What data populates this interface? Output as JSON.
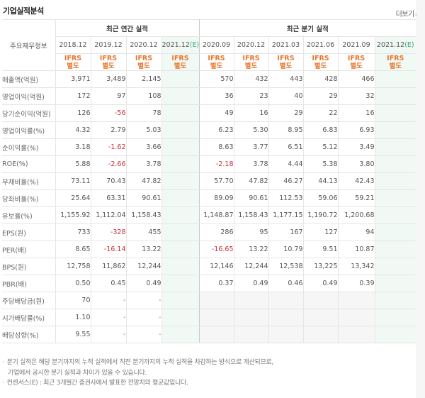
{
  "section": {
    "title": "기업실적분석",
    "more_label": "더보기",
    "more_arrow": "›"
  },
  "table": {
    "row_header": "주요재무정보",
    "groups": [
      {
        "label": "최근 연간 실적"
      },
      {
        "label": "최근 분기 실적"
      }
    ],
    "annual_periods": [
      {
        "label": "2018.12",
        "estimate": ""
      },
      {
        "label": "2019.12",
        "estimate": ""
      },
      {
        "label": "2020.12",
        "estimate": ""
      },
      {
        "label": "2021.12",
        "estimate": "(E)"
      }
    ],
    "quarter_periods": [
      {
        "label": "2020.09",
        "estimate": ""
      },
      {
        "label": "2020.12",
        "estimate": ""
      },
      {
        "label": "2021.03",
        "estimate": ""
      },
      {
        "label": "2021.06",
        "estimate": ""
      },
      {
        "label": "2021.09",
        "estimate": ""
      },
      {
        "label": "2021.12",
        "estimate": "(E)"
      }
    ],
    "ifrs_label": "IFRS",
    "basis_label": "별도",
    "rows": [
      {
        "label": "매출액(억원)",
        "annual": [
          "3,971",
          "3,489",
          "2,145",
          ""
        ],
        "quarter": [
          "570",
          "432",
          "443",
          "428",
          "466",
          ""
        ]
      },
      {
        "label": "영업이익(억원)",
        "annual": [
          "172",
          "97",
          "108",
          ""
        ],
        "quarter": [
          "36",
          "23",
          "40",
          "29",
          "32",
          ""
        ]
      },
      {
        "label": "당기순이익(억원)",
        "annual": [
          "126",
          "-56",
          "78",
          ""
        ],
        "quarter": [
          "49",
          "16",
          "29",
          "22",
          "16",
          ""
        ]
      },
      {
        "label": "영업이익률(%)",
        "annual": [
          "4.32",
          "2.79",
          "5.03",
          ""
        ],
        "quarter": [
          "6.23",
          "5.30",
          "8.95",
          "6.83",
          "6.93",
          ""
        ]
      },
      {
        "label": "순이익률(%)",
        "annual": [
          "3.18",
          "-1.62",
          "3.66",
          ""
        ],
        "quarter": [
          "8.63",
          "3.77",
          "6.51",
          "5.12",
          "3.49",
          ""
        ]
      },
      {
        "label": "ROE(%)",
        "annual": [
          "5.88",
          "-2.66",
          "3.78",
          ""
        ],
        "quarter": [
          "-2.18",
          "3.78",
          "4.44",
          "5.38",
          "3.80",
          ""
        ]
      },
      {
        "label": "부채비율(%)",
        "annual": [
          "73.11",
          "70.43",
          "47.82",
          ""
        ],
        "quarter": [
          "57.70",
          "47.82",
          "46.27",
          "44.13",
          "42.43",
          ""
        ]
      },
      {
        "label": "당좌비율(%)",
        "annual": [
          "25.64",
          "63.31",
          "90.61",
          ""
        ],
        "quarter": [
          "89.09",
          "90.61",
          "112.53",
          "59.06",
          "59.21",
          ""
        ]
      },
      {
        "label": "유보율(%)",
        "annual": [
          "1,155.92",
          "1,112.04",
          "1,158.43",
          ""
        ],
        "quarter": [
          "1,148.87",
          "1,158.43",
          "1,177.15",
          "1,190.72",
          "1,200.68",
          ""
        ]
      },
      {
        "label": "EPS(원)",
        "annual": [
          "733",
          "-328",
          "455",
          ""
        ],
        "quarter": [
          "286",
          "95",
          "167",
          "127",
          "94",
          ""
        ]
      },
      {
        "label": "PER(배)",
        "annual": [
          "8.65",
          "-16.14",
          "13.22",
          ""
        ],
        "quarter": [
          "-16.65",
          "13.22",
          "10.79",
          "9.51",
          "10.87",
          ""
        ]
      },
      {
        "label": "BPS(원)",
        "annual": [
          "12,758",
          "11,862",
          "12,244",
          ""
        ],
        "quarter": [
          "12,146",
          "12,244",
          "12,538",
          "13,225",
          "13,342",
          ""
        ]
      },
      {
        "label": "PBR(배)",
        "annual": [
          "0.50",
          "0.45",
          "0.49",
          ""
        ],
        "quarter": [
          "0.37",
          "0.49",
          "0.46",
          "0.49",
          "0.39",
          ""
        ]
      },
      {
        "label": "주당배당금(원)",
        "annual": [
          "70",
          "-",
          "-",
          ""
        ],
        "quarter": [
          "",
          "",
          "",
          "",
          "",
          ""
        ]
      },
      {
        "label": "시가배당률(%)",
        "annual": [
          "1.10",
          "-",
          "-",
          ""
        ],
        "quarter": [
          "",
          "",
          "",
          "",
          "",
          ""
        ]
      },
      {
        "label": "배당성향(%)",
        "annual": [
          "9.55",
          "-",
          "-",
          ""
        ],
        "quarter": [
          "",
          "",
          "",
          "",
          "",
          ""
        ]
      }
    ]
  },
  "notes": {
    "bullet": "·",
    "line1": "분기 실적은 해당 분기까지의 누적 실적에서 직전 분기까지의 누적 실적을 차감하는 방식으로 계산되므로,",
    "line2": "기업에서 공시한 분기 실적과 차이가 있을 수 있습니다.",
    "line3": "컨센서스(E) : 최근 3개월간 증권사에서 발표한 전망치의 평균값입니다."
  },
  "colors": {
    "ifrs_orange": "#e8772e",
    "estimate_green": "#3aa57a",
    "estimate_column_bg": "#f1f9f4",
    "negative_red": "#c9323a",
    "dividend_quarter_bg": "#f6f6f6"
  }
}
